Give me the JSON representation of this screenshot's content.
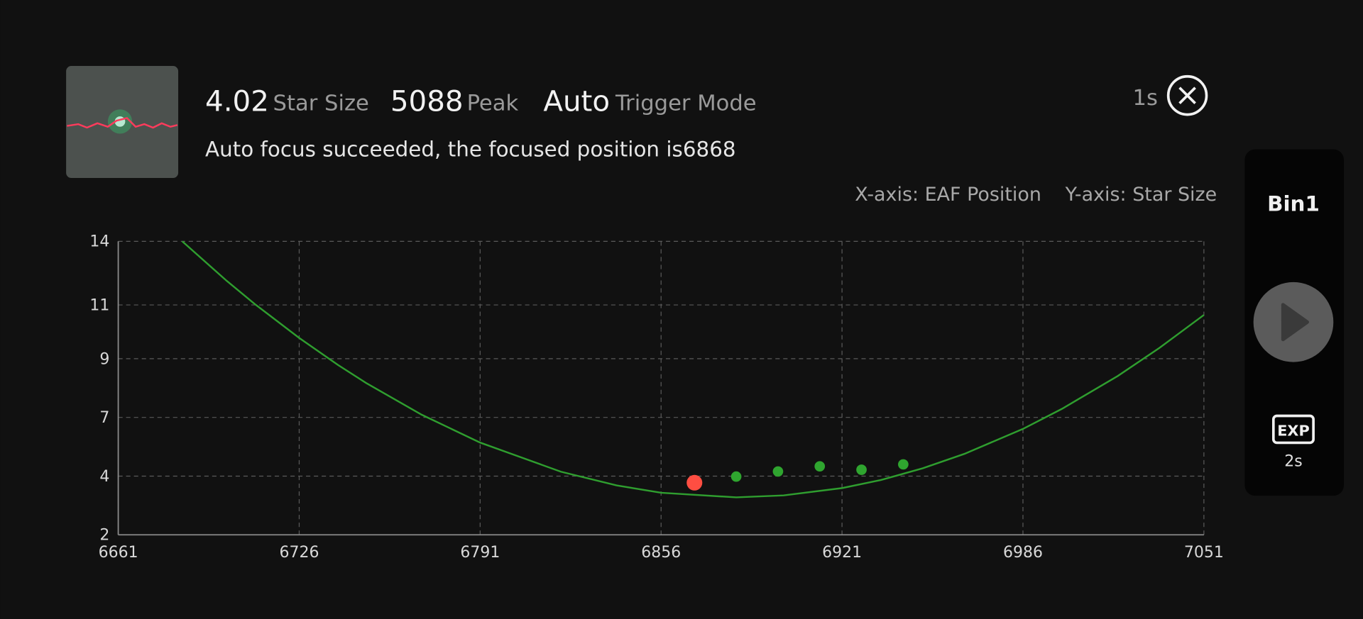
{
  "header": {
    "star_size_value": "4.02",
    "star_size_label": "Star Size",
    "peak_value": "5088",
    "peak_label": "Peak",
    "trigger_value": "Auto",
    "trigger_label": "Trigger Mode",
    "message": "Auto focus succeeded, the focused position is6868",
    "timer": "1s"
  },
  "axis_info": {
    "x": "X-axis: EAF Position",
    "y": "Y-axis: Star Size"
  },
  "side_panel": {
    "bin": "Bin1",
    "exp_label": "EXP",
    "exp_value": "2s"
  },
  "chart_data": {
    "type": "scatter",
    "xlim": [
      6661,
      7051
    ],
    "xticks": [
      6661,
      6726,
      6791,
      6856,
      6921,
      6986,
      7051
    ],
    "ylim": [
      2,
      14
    ],
    "yticks": [
      2,
      {
        "value": 4.4,
        "label": "4"
      },
      {
        "value": 6.8,
        "label": "7"
      },
      {
        "value": 9.2,
        "label": "9"
      },
      {
        "value": 11.4,
        "label": "11"
      },
      14
    ],
    "grid": true,
    "series": [
      {
        "mode": "line",
        "color": "#2f9e2f",
        "x": [
          6684,
          6700,
          6710,
          6726,
          6740,
          6750,
          6770,
          6791,
          6820,
          6840,
          6856,
          6883,
          6900,
          6921,
          6935,
          6950,
          6965,
          6986,
          7000,
          7020,
          7035,
          7051
        ],
        "values": [
          14.0,
          12.38,
          11.44,
          10.05,
          8.94,
          8.21,
          6.91,
          5.77,
          4.58,
          4.02,
          3.72,
          3.53,
          3.61,
          3.91,
          4.24,
          4.72,
          5.31,
          6.33,
          7.15,
          8.49,
          9.64,
          10.99
        ]
      },
      {
        "mode": "markers",
        "color": "#2fa52f",
        "marker_size": 6,
        "x": [
          6883,
          6898,
          6913,
          6928,
          6943
        ],
        "values": [
          4.38,
          4.59,
          4.8,
          4.66,
          4.88
        ]
      },
      {
        "mode": "markers",
        "color": "#ff4e42",
        "marker_size": 9,
        "x": [
          6868
        ],
        "values": [
          4.13
        ]
      }
    ]
  }
}
